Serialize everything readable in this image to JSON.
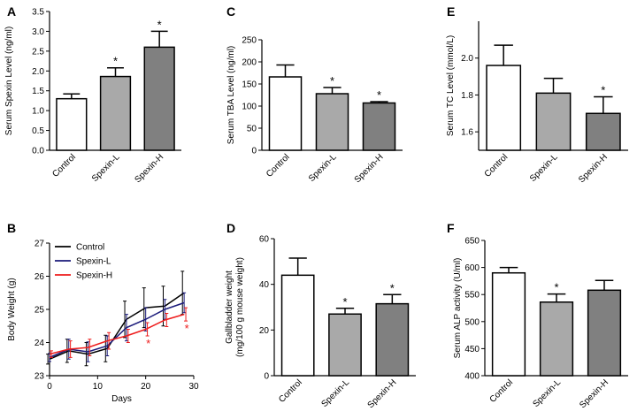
{
  "chart_data": [
    {
      "panel": "A",
      "type": "bar",
      "ylabel": "Serum Spexin Level (ng/ml)",
      "ylim": [
        0,
        3.5
      ],
      "yticks": [
        "0.0",
        "0.5",
        "1.0",
        "1.5",
        "2.0",
        "2.5",
        "3.0",
        "3.5"
      ],
      "categories": [
        "Control",
        "Spexin-L",
        "Spexin-H"
      ],
      "values": [
        1.3,
        1.86,
        2.6
      ],
      "errors": [
        0.12,
        0.22,
        0.4
      ],
      "significant": [
        false,
        true,
        true
      ],
      "colors": [
        "#ffffff",
        "#a9a9a9",
        "#808080"
      ],
      "star_label": "*"
    },
    {
      "panel": "C",
      "type": "bar",
      "ylabel": "Serum TBA Level (ng/ml)",
      "ylim": [
        0,
        250
      ],
      "yticks": [
        "0",
        "50",
        "100",
        "150",
        "200",
        "250"
      ],
      "categories": [
        "Control",
        "Spexin-L",
        "Spexin-H"
      ],
      "values": [
        166,
        128,
        107
      ],
      "errors": [
        27,
        14,
        3
      ],
      "significant": [
        false,
        true,
        true
      ],
      "colors": [
        "#ffffff",
        "#a9a9a9",
        "#808080"
      ],
      "star_label": "*"
    },
    {
      "panel": "E",
      "type": "bar",
      "ylabel": "Serum TC Level (mmol/L)",
      "ylim": [
        1.5,
        2.2
      ],
      "yticks": [
        "1.6",
        "1.8",
        "2.0"
      ],
      "ytick_values": [
        1.6,
        1.8,
        2.0
      ],
      "categories": [
        "Control",
        "Spexin-L",
        "Spexin-H"
      ],
      "values": [
        1.96,
        1.81,
        1.7
      ],
      "errors": [
        0.11,
        0.08,
        0.09
      ],
      "significant": [
        false,
        false,
        true
      ],
      "colors": [
        "#ffffff",
        "#a9a9a9",
        "#808080"
      ],
      "star_label": "*"
    },
    {
      "panel": "B",
      "type": "line",
      "xlabel": "Days",
      "ylabel": "Body Weight (g)",
      "xlim": [
        0,
        30
      ],
      "ylim": [
        23,
        27
      ],
      "xticks": [
        "0",
        "10",
        "20",
        "30"
      ],
      "yticks": [
        "23",
        "24",
        "25",
        "26",
        "27"
      ],
      "x": [
        0,
        4,
        8,
        12,
        16,
        20,
        24,
        28
      ],
      "series": [
        {
          "name": "Control",
          "color": "#000000",
          "values": [
            23.5,
            23.75,
            23.65,
            23.82,
            24.7,
            25.05,
            25.1,
            25.5
          ],
          "errors": [
            0.15,
            0.35,
            0.35,
            0.4,
            0.55,
            0.6,
            0.6,
            0.65
          ]
        },
        {
          "name": "Spexin-L",
          "color": "#1a1a7a",
          "values": [
            23.55,
            23.8,
            23.72,
            23.9,
            24.45,
            24.7,
            25.0,
            25.2
          ],
          "errors": [
            0.12,
            0.3,
            0.3,
            0.3,
            0.4,
            0.35,
            0.3,
            0.3
          ]
        },
        {
          "name": "Spexin-H",
          "color": "#ee1c1c",
          "values": [
            23.65,
            23.8,
            23.85,
            24.05,
            24.2,
            24.4,
            24.68,
            24.85
          ],
          "errors": [
            0.1,
            0.25,
            0.25,
            0.25,
            0.2,
            0.2,
            0.2,
            0.2
          ]
        }
      ],
      "star_x": [
        20,
        28
      ],
      "star_label": "*"
    },
    {
      "panel": "D",
      "type": "bar",
      "ylabel": "Gallbladder weight (mg/100 g mouse weight)",
      "ylabel_lines": [
        "Gallbladder weight",
        "(mg/100 g mouse weight)"
      ],
      "ylim": [
        0,
        60
      ],
      "yticks": [
        "0",
        "20",
        "40",
        "60"
      ],
      "categories": [
        "Control",
        "Spexin-L",
        "Spexin-H"
      ],
      "values": [
        44.0,
        27.0,
        31.5
      ],
      "errors": [
        7.5,
        2.5,
        4.0
      ],
      "significant": [
        false,
        true,
        true
      ],
      "colors": [
        "#ffffff",
        "#a9a9a9",
        "#808080"
      ],
      "star_label": "*"
    },
    {
      "panel": "F",
      "type": "bar",
      "ylabel": "Serum ALP activity (U/ml)",
      "ylim": [
        400,
        650
      ],
      "yticks": [
        "400",
        "450",
        "500",
        "550",
        "600",
        "650"
      ],
      "categories": [
        "Control",
        "Spexin-L",
        "Spexin-H"
      ],
      "values": [
        590,
        536,
        558
      ],
      "errors": [
        10,
        15,
        18
      ],
      "significant": [
        false,
        true,
        false
      ],
      "colors": [
        "#ffffff",
        "#a9a9a9",
        "#808080"
      ],
      "star_label": "*"
    }
  ]
}
